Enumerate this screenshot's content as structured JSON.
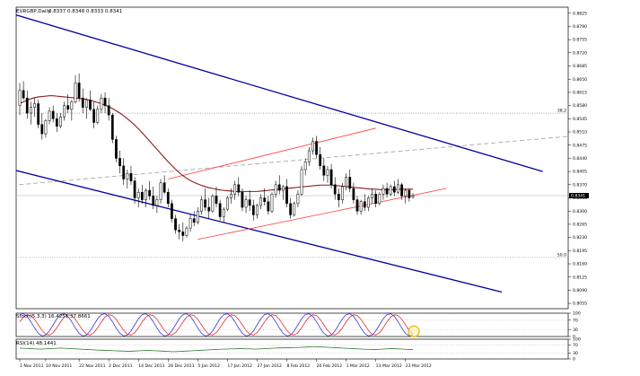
{
  "chart_data": {
    "type": "candlestick",
    "symbol_header": {
      "symbol": "EURGBP,Daily",
      "ohlc": "0.8337 0.8348 0.8333 0.8341"
    },
    "current_price": "0.8341",
    "colors": {
      "background": "#ffffff",
      "candle": "#000000",
      "ma": "#8b1a1a",
      "channel": "#0000a0",
      "inner_channel": "#ff3b3b",
      "dashed": "#a8a8a8",
      "fib": "#6a6aa8",
      "stoch_main": "#3a3ad0",
      "stoch_signal": "#e03030",
      "rsi": "#2e7d32",
      "highlight": "#e6b800"
    },
    "price_axis": {
      "ylim": [
        0.8041,
        0.8841
      ],
      "ticks": [
        "0.8825",
        "0.8790",
        "0.8755",
        "0.8720",
        "0.8685",
        "0.8650",
        "0.8615",
        "0.8580",
        "0.8545",
        "0.8510",
        "0.8475",
        "0.8440",
        "0.8405",
        "0.8370",
        "0.8335",
        "0.8300",
        "0.8265",
        "0.8230",
        "0.8195",
        "0.8160",
        "0.8125",
        "0.8090",
        "0.8055"
      ]
    },
    "x_axis": {
      "labels": [
        "1 Nov 2011",
        "10 Nov 2011",
        "22 Nov 2011",
        "2 Dec 2011",
        "14 Dec 2011",
        "26 Dec 2011",
        "5 Jan 2012",
        "17 Jan 2012",
        "27 Jan 2012",
        "8 Feb 2012",
        "20 Feb 2012",
        "1 Mar 2012",
        "13 Mar 2012",
        "23 Mar 2012"
      ],
      "label_bars": [
        0,
        7,
        16,
        24,
        32,
        40,
        48,
        56,
        64,
        72,
        80,
        88,
        96,
        104
      ]
    },
    "fib_levels": [
      {
        "label": "38.2",
        "price": 0.856
      },
      {
        "label": "50.0",
        "price": 0.8177
      }
    ],
    "candles_ohlc": [
      [
        0.858,
        0.864,
        0.8555,
        0.862
      ],
      [
        0.862,
        0.8645,
        0.8595,
        0.86
      ],
      [
        0.86,
        0.862,
        0.8545,
        0.856
      ],
      [
        0.856,
        0.859,
        0.853,
        0.8575
      ],
      [
        0.8575,
        0.86,
        0.855,
        0.8585
      ],
      [
        0.8585,
        0.8595,
        0.852,
        0.853
      ],
      [
        0.853,
        0.856,
        0.849,
        0.8505
      ],
      [
        0.8505,
        0.8545,
        0.8495,
        0.854
      ],
      [
        0.854,
        0.8575,
        0.853,
        0.8565
      ],
      [
        0.8565,
        0.858,
        0.8535,
        0.8545
      ],
      [
        0.8545,
        0.856,
        0.851,
        0.8525
      ],
      [
        0.8525,
        0.856,
        0.852,
        0.855
      ],
      [
        0.855,
        0.859,
        0.854,
        0.858
      ],
      [
        0.858,
        0.861,
        0.856,
        0.857
      ],
      [
        0.857,
        0.8595,
        0.854,
        0.859
      ],
      [
        0.859,
        0.866,
        0.8585,
        0.864
      ],
      [
        0.864,
        0.8665,
        0.859,
        0.86
      ],
      [
        0.86,
        0.8625,
        0.856,
        0.8575
      ],
      [
        0.8575,
        0.86,
        0.8545,
        0.8595
      ],
      [
        0.8595,
        0.862,
        0.8565,
        0.857
      ],
      [
        0.857,
        0.859,
        0.852,
        0.8535
      ],
      [
        0.8535,
        0.858,
        0.853,
        0.857
      ],
      [
        0.857,
        0.861,
        0.856,
        0.86
      ],
      [
        0.86,
        0.8615,
        0.856,
        0.858
      ],
      [
        0.858,
        0.86,
        0.854,
        0.8555
      ],
      [
        0.8555,
        0.856,
        0.848,
        0.849
      ],
      [
        0.849,
        0.85,
        0.843,
        0.844
      ],
      [
        0.844,
        0.846,
        0.84,
        0.842
      ],
      [
        0.842,
        0.844,
        0.837,
        0.8385
      ],
      [
        0.8385,
        0.841,
        0.836,
        0.84
      ],
      [
        0.84,
        0.842,
        0.837,
        0.838
      ],
      [
        0.838,
        0.839,
        0.832,
        0.8335
      ],
      [
        0.8335,
        0.836,
        0.831,
        0.835
      ],
      [
        0.835,
        0.837,
        0.832,
        0.833
      ],
      [
        0.833,
        0.836,
        0.831,
        0.8355
      ],
      [
        0.8355,
        0.838,
        0.833,
        0.834
      ],
      [
        0.834,
        0.8365,
        0.8305,
        0.8315
      ],
      [
        0.8315,
        0.834,
        0.8295,
        0.833
      ],
      [
        0.833,
        0.8385,
        0.832,
        0.8375
      ],
      [
        0.8375,
        0.8395,
        0.8345,
        0.835
      ],
      [
        0.835,
        0.836,
        0.831,
        0.832
      ],
      [
        0.832,
        0.833,
        0.827,
        0.828
      ],
      [
        0.828,
        0.829,
        0.824,
        0.825
      ],
      [
        0.825,
        0.8265,
        0.8225,
        0.8245
      ],
      [
        0.8245,
        0.827,
        0.822,
        0.8235
      ],
      [
        0.8235,
        0.826,
        0.823,
        0.8255
      ],
      [
        0.8255,
        0.829,
        0.8245,
        0.828
      ],
      [
        0.828,
        0.83,
        0.826,
        0.827
      ],
      [
        0.827,
        0.831,
        0.8265,
        0.83
      ],
      [
        0.83,
        0.834,
        0.829,
        0.833
      ],
      [
        0.833,
        0.836,
        0.83,
        0.831
      ],
      [
        0.831,
        0.8335,
        0.828,
        0.83
      ],
      [
        0.83,
        0.8345,
        0.8295,
        0.834
      ],
      [
        0.834,
        0.8365,
        0.831,
        0.832
      ],
      [
        0.832,
        0.833,
        0.8275,
        0.8285
      ],
      [
        0.8285,
        0.831,
        0.827,
        0.8305
      ],
      [
        0.8305,
        0.834,
        0.83,
        0.8335
      ],
      [
        0.8335,
        0.836,
        0.832,
        0.8345
      ],
      [
        0.8345,
        0.838,
        0.833,
        0.837
      ],
      [
        0.837,
        0.839,
        0.834,
        0.835
      ],
      [
        0.835,
        0.836,
        0.83,
        0.831
      ],
      [
        0.831,
        0.834,
        0.8295,
        0.833
      ],
      [
        0.833,
        0.8355,
        0.83,
        0.8315
      ],
      [
        0.8315,
        0.833,
        0.8275,
        0.829
      ],
      [
        0.829,
        0.832,
        0.828,
        0.8315
      ],
      [
        0.8315,
        0.8345,
        0.8305,
        0.8335
      ],
      [
        0.8335,
        0.836,
        0.8315,
        0.8325
      ],
      [
        0.8325,
        0.834,
        0.829,
        0.83
      ],
      [
        0.83,
        0.835,
        0.8295,
        0.8345
      ],
      [
        0.8345,
        0.838,
        0.8335,
        0.837
      ],
      [
        0.837,
        0.8395,
        0.8345,
        0.8355
      ],
      [
        0.8355,
        0.837,
        0.833,
        0.8365
      ],
      [
        0.8365,
        0.8385,
        0.831,
        0.832
      ],
      [
        0.832,
        0.8335,
        0.828,
        0.829
      ],
      [
        0.829,
        0.8325,
        0.8285,
        0.832
      ],
      [
        0.832,
        0.8355,
        0.831,
        0.8345
      ],
      [
        0.8345,
        0.842,
        0.834,
        0.841
      ],
      [
        0.841,
        0.844,
        0.8395,
        0.843
      ],
      [
        0.843,
        0.847,
        0.842,
        0.846
      ],
      [
        0.846,
        0.8495,
        0.845,
        0.8485
      ],
      [
        0.8485,
        0.85,
        0.844,
        0.845
      ],
      [
        0.845,
        0.847,
        0.841,
        0.842
      ],
      [
        0.842,
        0.844,
        0.838,
        0.8395
      ],
      [
        0.8395,
        0.842,
        0.8375,
        0.841
      ],
      [
        0.841,
        0.8425,
        0.836,
        0.837
      ],
      [
        0.837,
        0.839,
        0.833,
        0.8345
      ],
      [
        0.8345,
        0.836,
        0.831,
        0.833
      ],
      [
        0.833,
        0.8375,
        0.832,
        0.8365
      ],
      [
        0.8365,
        0.84,
        0.8355,
        0.839
      ],
      [
        0.839,
        0.841,
        0.835,
        0.836
      ],
      [
        0.836,
        0.8375,
        0.832,
        0.833
      ],
      [
        0.833,
        0.834,
        0.829,
        0.83
      ],
      [
        0.83,
        0.833,
        0.829,
        0.8325
      ],
      [
        0.8325,
        0.8345,
        0.83,
        0.831
      ],
      [
        0.831,
        0.834,
        0.83,
        0.8335
      ],
      [
        0.8335,
        0.836,
        0.832,
        0.8345
      ],
      [
        0.8345,
        0.8355,
        0.831,
        0.832
      ],
      [
        0.832,
        0.835,
        0.8315,
        0.8345
      ],
      [
        0.8345,
        0.837,
        0.833,
        0.836
      ],
      [
        0.836,
        0.8375,
        0.8335,
        0.8345
      ],
      [
        0.8345,
        0.837,
        0.834,
        0.8365
      ],
      [
        0.8365,
        0.838,
        0.834,
        0.835
      ],
      [
        0.835,
        0.8385,
        0.8345,
        0.837
      ],
      [
        0.837,
        0.8375,
        0.833,
        0.834
      ],
      [
        0.834,
        0.836,
        0.832,
        0.8355
      ],
      [
        0.8355,
        0.836,
        0.8325,
        0.8335
      ],
      [
        0.8337,
        0.8348,
        0.8333,
        0.8341
      ]
    ],
    "ma_values": [
      0.8585,
      0.859,
      0.8594,
      0.8598,
      0.8601,
      0.8603,
      0.8604,
      0.8605,
      0.8606,
      0.8606,
      0.8605,
      0.8604,
      0.8603,
      0.8602,
      0.8601,
      0.86,
      0.8599,
      0.8598,
      0.8596,
      0.8594,
      0.8591,
      0.8588,
      0.8585,
      0.8581,
      0.8577,
      0.8572,
      0.8566,
      0.856,
      0.8553,
      0.8545,
      0.8537,
      0.8528,
      0.8518,
      0.8508,
      0.8497,
      0.8486,
      0.8475,
      0.8464,
      0.8453,
      0.8442,
      0.8431,
      0.8421,
      0.8411,
      0.8402,
      0.8394,
      0.8387,
      0.8381,
      0.8376,
      0.8372,
      0.8368,
      0.8365,
      0.8362,
      0.836,
      0.8358,
      0.8356,
      0.8355,
      0.8354,
      0.8353,
      0.8352,
      0.8352,
      0.8352,
      0.8352,
      0.8352,
      0.8352,
      0.8352,
      0.8353,
      0.8354,
      0.8355,
      0.8356,
      0.8357,
      0.8358,
      0.8359,
      0.836,
      0.8361,
      0.8362,
      0.8363,
      0.8364,
      0.8365,
      0.8366,
      0.8367,
      0.8368,
      0.8369,
      0.8369,
      0.8369,
      0.8369,
      0.8368,
      0.8367,
      0.8366,
      0.8365,
      0.8364,
      0.8363,
      0.8362,
      0.8361,
      0.836,
      0.8359,
      0.8358,
      0.8358,
      0.8357,
      0.8357,
      0.8357,
      0.8357,
      0.8357,
      0.8358,
      0.8358,
      0.8358,
      0.8358,
      0.8358
    ],
    "trendlines": {
      "outer_channel": [
        {
          "from": [
            -6,
            0.8835
          ],
          "to": [
            141,
            0.8405
          ]
        },
        {
          "from": [
            -6,
            0.842
          ],
          "to": [
            130,
            0.8085
          ]
        }
      ],
      "inner_channel": [
        {
          "from": [
            40,
            0.8385
          ],
          "to": [
            96,
            0.852
          ]
        },
        {
          "from": [
            48,
            0.8225
          ],
          "to": [
            115,
            0.836
          ]
        }
      ],
      "dashed_midline": {
        "from": [
          -6,
          0.8365
        ],
        "to": [
          150,
          0.85
        ]
      }
    },
    "stoch": {
      "label": "Stoch(5,3,3) 16.4251 37.8661",
      "ylim": [
        0,
        100
      ],
      "ticks": [
        "100",
        "70",
        "30",
        "0"
      ],
      "cycle_period": 11,
      "main_amplitude": 48,
      "signal_lag_bars": 1.5
    },
    "rsi": {
      "label": "RSI(14) 48.1441",
      "ylim": [
        0,
        100
      ],
      "ticks": [
        "100",
        "70",
        "30",
        "0"
      ],
      "values": [
        55,
        54,
        53,
        52,
        51,
        50,
        50,
        51,
        52,
        53,
        54,
        55,
        54,
        53,
        52,
        51,
        50,
        49,
        48,
        47,
        46,
        45,
        44,
        44,
        43,
        42,
        41,
        40,
        40,
        39,
        39,
        40,
        41,
        42,
        43,
        43,
        42,
        41,
        40,
        39,
        38,
        37,
        37,
        38,
        39,
        40,
        41,
        42,
        43,
        44,
        45,
        46,
        47,
        48,
        49,
        50,
        50,
        51,
        51,
        52,
        52,
        51,
        51,
        50,
        50,
        51,
        52,
        53,
        54,
        55,
        56,
        56,
        57,
        57,
        58,
        58,
        59,
        60,
        61,
        62,
        62,
        61,
        60,
        59,
        58,
        57,
        56,
        55,
        54,
        53,
        52,
        51,
        50,
        49,
        49,
        48,
        48,
        49,
        50,
        51,
        52,
        52,
        51,
        50,
        49,
        48,
        48
      ]
    }
  }
}
